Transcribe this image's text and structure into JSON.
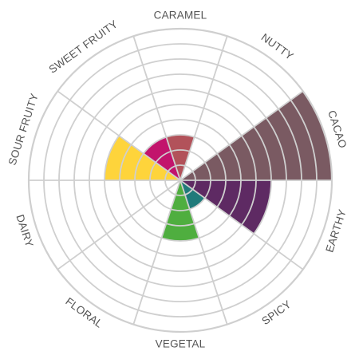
{
  "chart_data": {
    "type": "polar-area",
    "rings": 10,
    "max": 10,
    "grid": true,
    "grid_color": "#cfcfcf",
    "categories": [
      {
        "label": "CACAO",
        "value": 10,
        "color": "#7a5a62"
      },
      {
        "label": "EARTHY",
        "value": 6,
        "color": "#5e2a63"
      },
      {
        "label": "SPICY",
        "value": 2,
        "color": "#1f7a7a"
      },
      {
        "label": "VEGETAL",
        "value": 4,
        "color": "#4fae3f"
      },
      {
        "label": "FLORAL",
        "value": 0,
        "color": "#cccccc"
      },
      {
        "label": "DAIRY",
        "value": 0,
        "color": "#cccccc"
      },
      {
        "label": "SOUR FRUITY",
        "value": 5,
        "color": "#fed43b"
      },
      {
        "label": "SWEET FRUITY",
        "value": 3,
        "color": "#c2146c"
      },
      {
        "label": "CARAMEL",
        "value": 3,
        "color": "#b2525a"
      },
      {
        "label": "NUTTY",
        "value": 0,
        "color": "#cccccc"
      }
    ]
  }
}
